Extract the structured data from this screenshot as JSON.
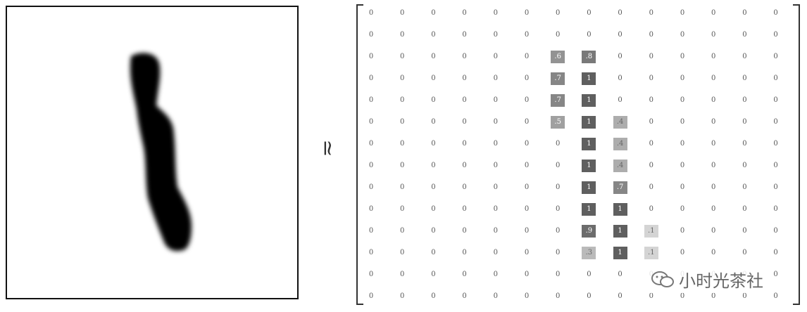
{
  "approx_symbol": "≃",
  "watermark": {
    "text": "小时光茶社",
    "icon": "wechat-icon"
  },
  "digit_image": {
    "label": "1",
    "stroke_color": "#000000"
  },
  "matrix": {
    "rows": [
      [
        "0",
        "0",
        "0",
        "0",
        "0",
        "0",
        "0",
        "0",
        "0",
        "0",
        "0",
        "0",
        "0",
        "0"
      ],
      [
        "0",
        "0",
        "0",
        "0",
        "0",
        "0",
        "0",
        "0",
        "0",
        "0",
        "0",
        "0",
        "0",
        "0"
      ],
      [
        "0",
        "0",
        "0",
        "0",
        "0",
        "0",
        ".6",
        ".8",
        "0",
        "0",
        "0",
        "0",
        "0",
        "0"
      ],
      [
        "0",
        "0",
        "0",
        "0",
        "0",
        "0",
        ".7",
        "1",
        "0",
        "0",
        "0",
        "0",
        "0",
        "0"
      ],
      [
        "0",
        "0",
        "0",
        "0",
        "0",
        "0",
        ".7",
        "1",
        "0",
        "0",
        "0",
        "0",
        "0",
        "0"
      ],
      [
        "0",
        "0",
        "0",
        "0",
        "0",
        "0",
        ".5",
        "1",
        ".4",
        "0",
        "0",
        "0",
        "0",
        "0"
      ],
      [
        "0",
        "0",
        "0",
        "0",
        "0",
        "0",
        "0",
        "1",
        ".4",
        "0",
        "0",
        "0",
        "0",
        "0"
      ],
      [
        "0",
        "0",
        "0",
        "0",
        "0",
        "0",
        "0",
        "1",
        ".4",
        "0",
        "0",
        "0",
        "0",
        "0"
      ],
      [
        "0",
        "0",
        "0",
        "0",
        "0",
        "0",
        "0",
        "1",
        ".7",
        "0",
        "0",
        "0",
        "0",
        "0"
      ],
      [
        "0",
        "0",
        "0",
        "0",
        "0",
        "0",
        "0",
        "1",
        "1",
        "0",
        "0",
        "0",
        "0",
        "0"
      ],
      [
        "0",
        "0",
        "0",
        "0",
        "0",
        "0",
        "0",
        ".9",
        "1",
        ".1",
        "0",
        "0",
        "0",
        "0"
      ],
      [
        "0",
        "0",
        "0",
        "0",
        "0",
        "0",
        "0",
        ".3",
        "1",
        ".1",
        "0",
        "0",
        "0",
        "0"
      ],
      [
        "0",
        "0",
        "0",
        "0",
        "0",
        "0",
        "0",
        "0",
        "0",
        "0",
        "0",
        "0",
        "0",
        "0"
      ],
      [
        "0",
        "0",
        "0",
        "0",
        "0",
        "0",
        "0",
        "0",
        "0",
        "0",
        "0",
        "0",
        "0",
        "0"
      ]
    ]
  }
}
